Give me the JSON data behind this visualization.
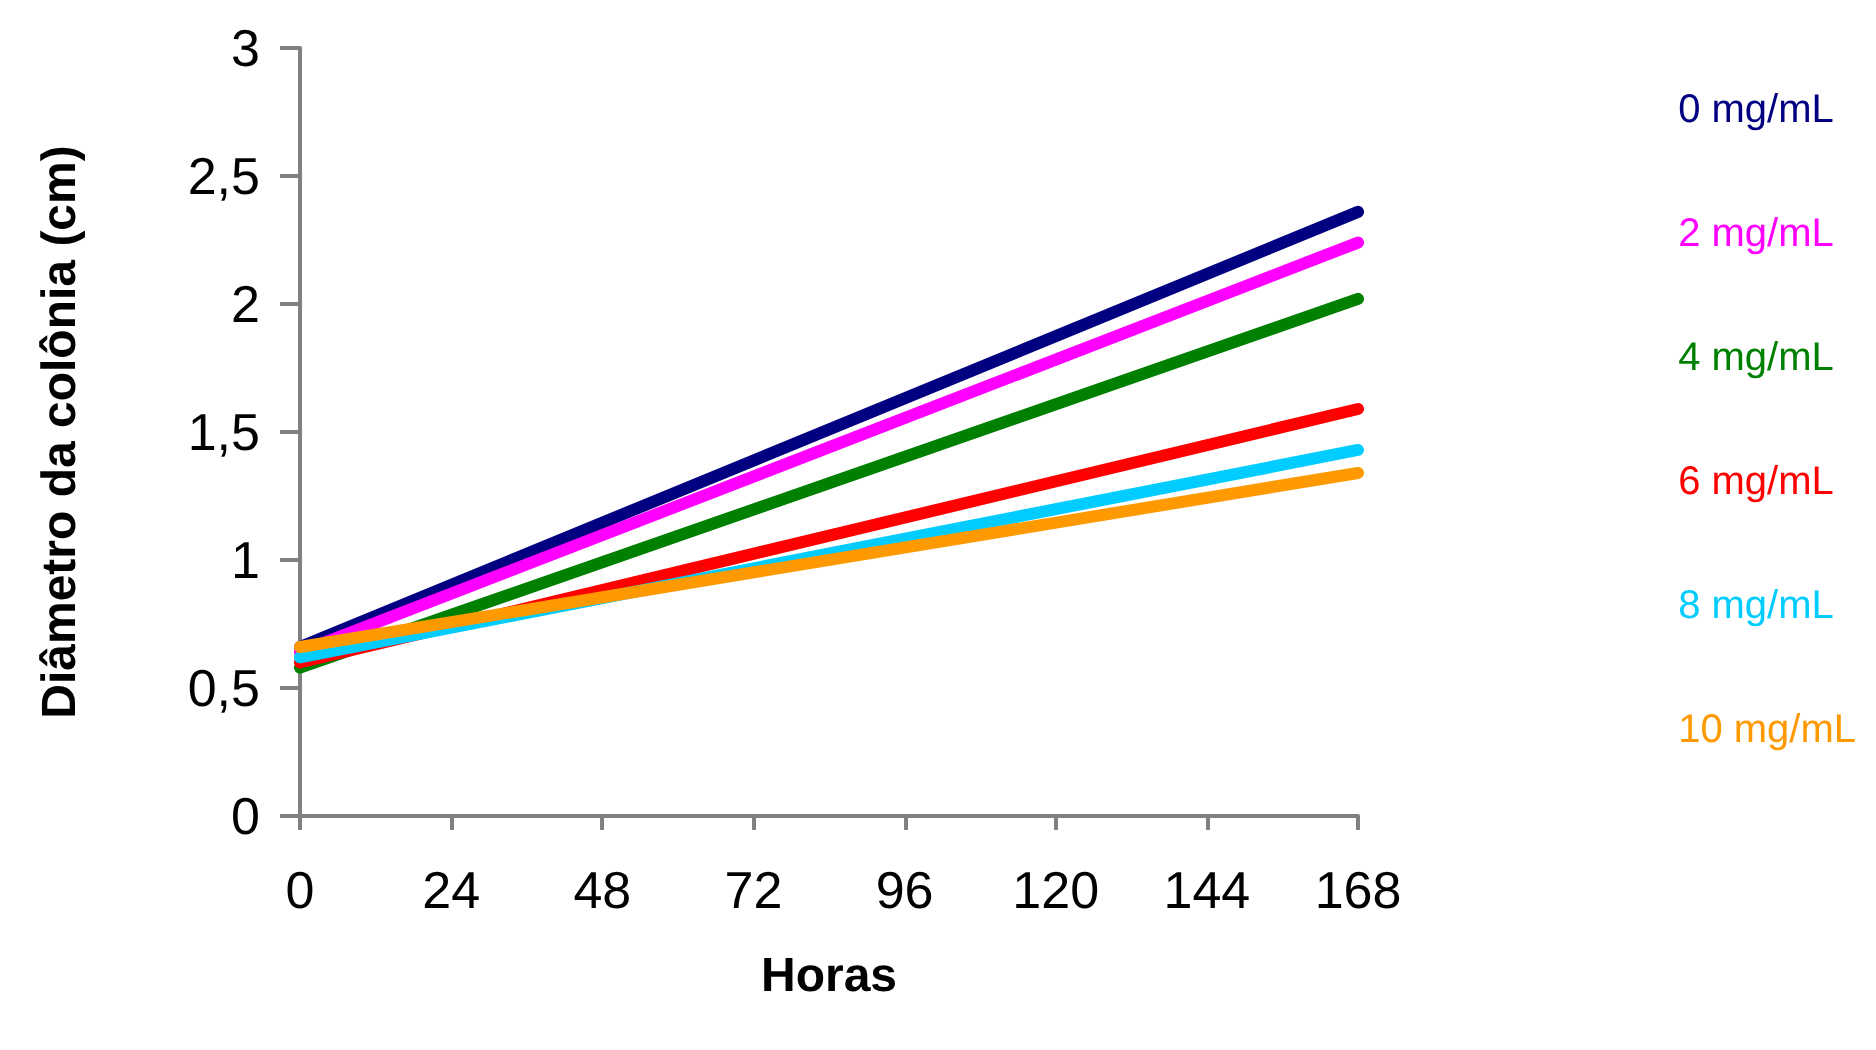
{
  "chart_data": {
    "type": "line",
    "xlabel": "Horas",
    "ylabel": "Diâmetro da colônia (cm)",
    "x": [
      0,
      168
    ],
    "series": [
      {
        "name": "0 mg/mL",
        "color": "#000080",
        "values": [
          0.66,
          2.36
        ]
      },
      {
        "name": "2 mg/mL",
        "color": "#ff00ff",
        "values": [
          0.64,
          2.24
        ]
      },
      {
        "name": "4 mg/mL",
        "color": "#008000",
        "values": [
          0.58,
          2.02
        ]
      },
      {
        "name": "6 mg/mL",
        "color": "#ff0000",
        "values": [
          0.6,
          1.59
        ]
      },
      {
        "name": "8 mg/mL",
        "color": "#00ccff",
        "values": [
          0.62,
          1.43
        ]
      },
      {
        "name": "10 mg/mL",
        "color": "#ff9900",
        "values": [
          0.66,
          1.34
        ]
      }
    ],
    "xlim": [
      0,
      168
    ],
    "xticks": [
      0,
      24,
      48,
      72,
      96,
      120,
      144,
      168
    ],
    "ylim": [
      0,
      3
    ],
    "yticks": [
      {
        "value": 0,
        "label": "0"
      },
      {
        "value": 0.5,
        "label": "0,5"
      },
      {
        "value": 1,
        "label": "1"
      },
      {
        "value": 1.5,
        "label": "1,5"
      },
      {
        "value": 2,
        "label": "2"
      },
      {
        "value": 2.5,
        "label": "2,5"
      },
      {
        "value": 3,
        "label": "3"
      }
    ],
    "grid": false,
    "legend": "right",
    "marker": "none",
    "line_style": "solid"
  }
}
